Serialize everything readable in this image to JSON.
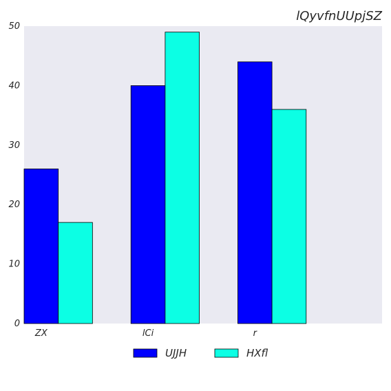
{
  "chart_data": {
    "type": "bar",
    "title": "lQyvfnUUpjSZ",
    "xlabel": "",
    "ylabel": "",
    "categories": [
      "ZX",
      "lCi",
      "r"
    ],
    "series": [
      {
        "name": "UJJH",
        "values": [
          26,
          40,
          44
        ],
        "color": "#0000ff"
      },
      {
        "name": "HXfl",
        "values": [
          17,
          49,
          36
        ],
        "color": "#0cffe4"
      }
    ],
    "ylim": [
      0,
      50
    ],
    "yticks": [
      0,
      10,
      20,
      30,
      40,
      50
    ],
    "grid": false,
    "legend_position": "bottom-center",
    "plot_background": "#eaeaf2"
  }
}
